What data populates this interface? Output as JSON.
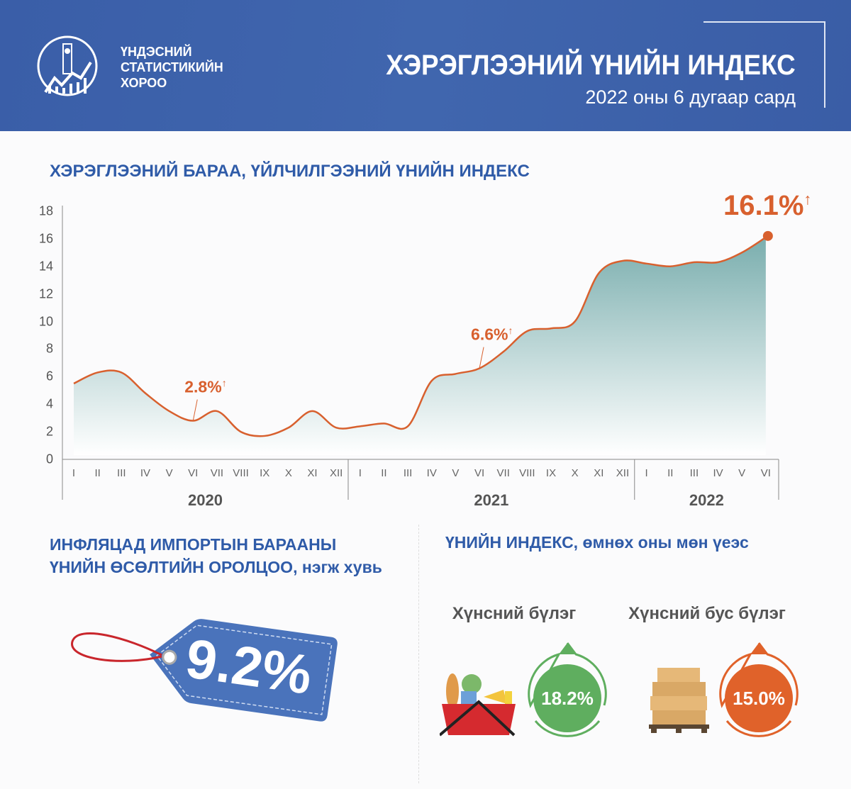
{
  "header": {
    "org_lines": [
      "ҮНДЭСНИЙ",
      "СТАТИСТИКИЙН",
      "ХОРОО"
    ],
    "title": "ХЭРЭГЛЭЭНИЙ ҮНИЙН ИНДЕКС",
    "subtitle": "2022 оны 6 дугаар сард",
    "color": "#3a5ea8"
  },
  "chart_data": {
    "type": "area",
    "title": "ХЭРЭГЛЭЭНИЙ БАРАА, ҮЙЛЧИЛГЭЭНИЙ ҮНИЙН ИНДЕКС",
    "ylim": [
      0,
      18
    ],
    "yticks": [
      0,
      2,
      4,
      6,
      8,
      10,
      12,
      14,
      16,
      18
    ],
    "years": [
      {
        "label": "2020",
        "months": [
          "I",
          "II",
          "III",
          "IV",
          "V",
          "VI",
          "VII",
          "VIII",
          "IX",
          "X",
          "XI",
          "XII"
        ]
      },
      {
        "label": "2021",
        "months": [
          "I",
          "II",
          "III",
          "IV",
          "V",
          "VI",
          "VII",
          "VIII",
          "IX",
          "X",
          "XI",
          "XII"
        ]
      },
      {
        "label": "2022",
        "months": [
          "I",
          "II",
          "III",
          "IV",
          "V",
          "VI"
        ]
      }
    ],
    "values": [
      5.5,
      6.3,
      6.3,
      4.8,
      3.5,
      2.8,
      3.5,
      2.0,
      1.7,
      2.3,
      3.5,
      2.3,
      2.4,
      2.6,
      2.4,
      5.7,
      6.2,
      6.6,
      7.8,
      9.3,
      9.5,
      10.0,
      13.5,
      14.4,
      14.2,
      14.0,
      14.3,
      14.3,
      15.0,
      16.1
    ],
    "annotations": [
      {
        "index": 5,
        "label": "2.8%",
        "arrow": "↑"
      },
      {
        "index": 17,
        "label": "6.6%",
        "arrow": "↑"
      },
      {
        "index": 29,
        "label": "16.1%",
        "arrow": "↑"
      }
    ],
    "line_color": "#d8602e",
    "fill_color": "#86b3b3"
  },
  "import": {
    "title_lines": [
      "ИНФЛЯЦАД  ИМПОРТЫН БАРААНЫ",
      "ҮНИЙН ӨСӨЛТИЙН ОРОЛЦОО, нэгж хувь"
    ],
    "value": "9.2%"
  },
  "yoy": {
    "title": "ҮНИЙН ИНДЕКС, өмнөх оны мөн үеэс",
    "groups": [
      {
        "label": "Хүнсний бүлэг",
        "value": "18.2%",
        "color": "#5fae5f"
      },
      {
        "label": "Хүнсний бус бүлэг",
        "value": "15.0%",
        "color": "#e0622a"
      }
    ]
  }
}
